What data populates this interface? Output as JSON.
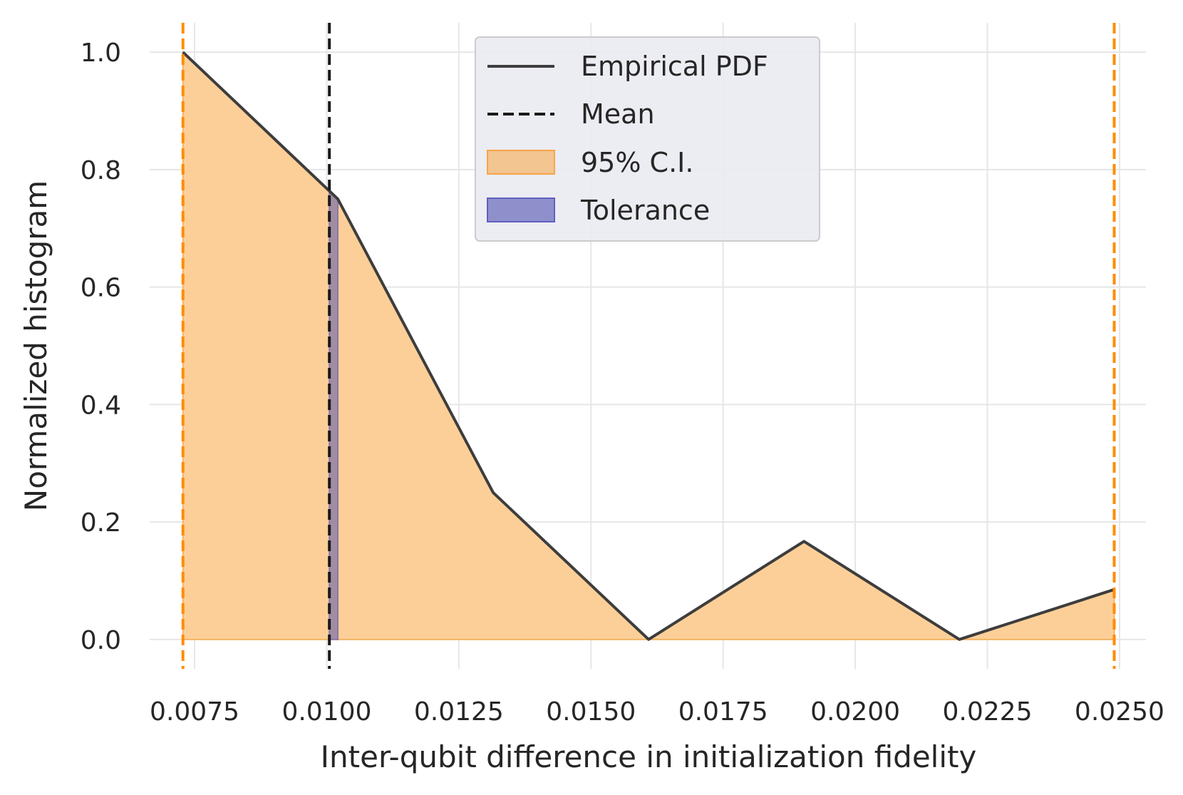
{
  "chart_data": {
    "type": "area",
    "xlabel": "Inter-qubit difference in initialization fidelity",
    "ylabel": "Normalized histogram",
    "xlim": [
      0.00665,
      0.0255
    ],
    "ylim": [
      -0.05,
      1.05
    ],
    "xticks": [
      0.0075,
      0.01,
      0.0125,
      0.015,
      0.0175,
      0.02,
      0.0225,
      0.025
    ],
    "xtick_labels": [
      "0.0075",
      "0.0100",
      "0.0125",
      "0.0150",
      "0.0175",
      "0.0200",
      "0.0225",
      "0.0250"
    ],
    "yticks": [
      0.0,
      0.2,
      0.4,
      0.6,
      0.8,
      1.0
    ],
    "ytick_labels": [
      "0.0",
      "0.2",
      "0.4",
      "0.6",
      "0.8",
      "1.0"
    ],
    "grid": true,
    "legend_position": "top-center",
    "series": [
      {
        "name": "Empirical PDF",
        "x": [
          0.00728,
          0.01021,
          0.01315,
          0.01609,
          0.01903,
          0.02197,
          0.0249
        ],
        "y": [
          1.0,
          0.75,
          0.25,
          0.0,
          0.167,
          0.0,
          0.085
        ],
        "color": "#3d3d3d"
      }
    ],
    "mean": {
      "name": "Mean",
      "x": 0.01005,
      "color": "#1a1a1a"
    },
    "confidence_interval": {
      "name": "95% C.I.",
      "x": [
        0.00728,
        0.0249
      ],
      "color": "#ff8c00",
      "fill": "#fdcf98"
    },
    "tolerance": {
      "name": "Tolerance",
      "x": [
        0.01005,
        0.01021
      ],
      "color": "#5f5fb8"
    },
    "legend": [
      "Empirical PDF",
      "Mean",
      "95% C.I.",
      "Tolerance"
    ]
  }
}
